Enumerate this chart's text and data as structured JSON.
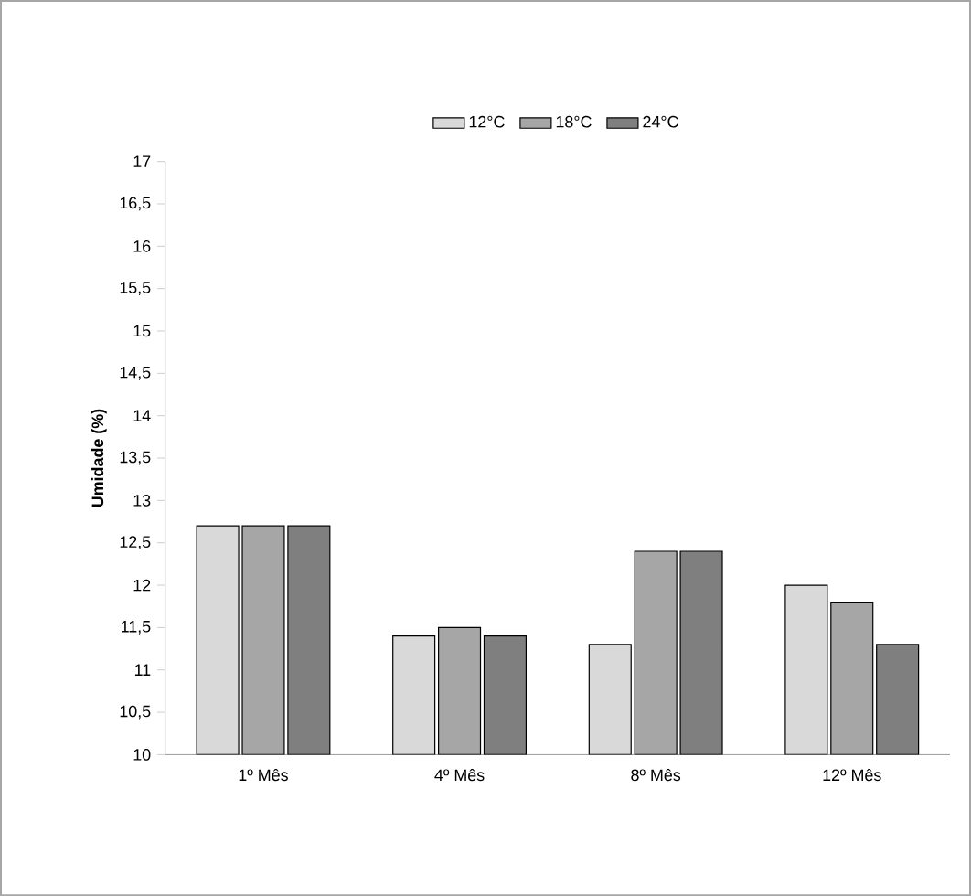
{
  "chart_data": {
    "type": "bar",
    "ylabel": "Umidade (%)",
    "categories": [
      "1º Mês",
      "4º Mês",
      "8º Mês",
      "12º Mês"
    ],
    "series": [
      {
        "name": "12°C",
        "color": "#d9d9d9",
        "values": [
          12.7,
          11.4,
          11.3,
          12.0
        ]
      },
      {
        "name": "18°C",
        "color": "#a6a6a6",
        "values": [
          12.7,
          11.5,
          12.4,
          11.8
        ]
      },
      {
        "name": "24°C",
        "color": "#7f7f7f",
        "values": [
          12.7,
          11.4,
          12.4,
          11.3
        ]
      }
    ],
    "ylim": [
      10,
      17
    ],
    "yticks": [
      10,
      {
        "value": 10.5,
        "label": "10,5"
      },
      11,
      {
        "value": 11.5,
        "label": "11,5"
      },
      12,
      {
        "value": 12.5,
        "label": "12,5"
      },
      13,
      {
        "value": 13.5,
        "label": "13,5"
      },
      14,
      {
        "value": 14.5,
        "label": "14,5"
      },
      15,
      {
        "value": 15.5,
        "label": "15,5"
      },
      16,
      {
        "value": 16.5,
        "label": "16,5"
      },
      17
    ],
    "grid": false,
    "legend": "top"
  }
}
